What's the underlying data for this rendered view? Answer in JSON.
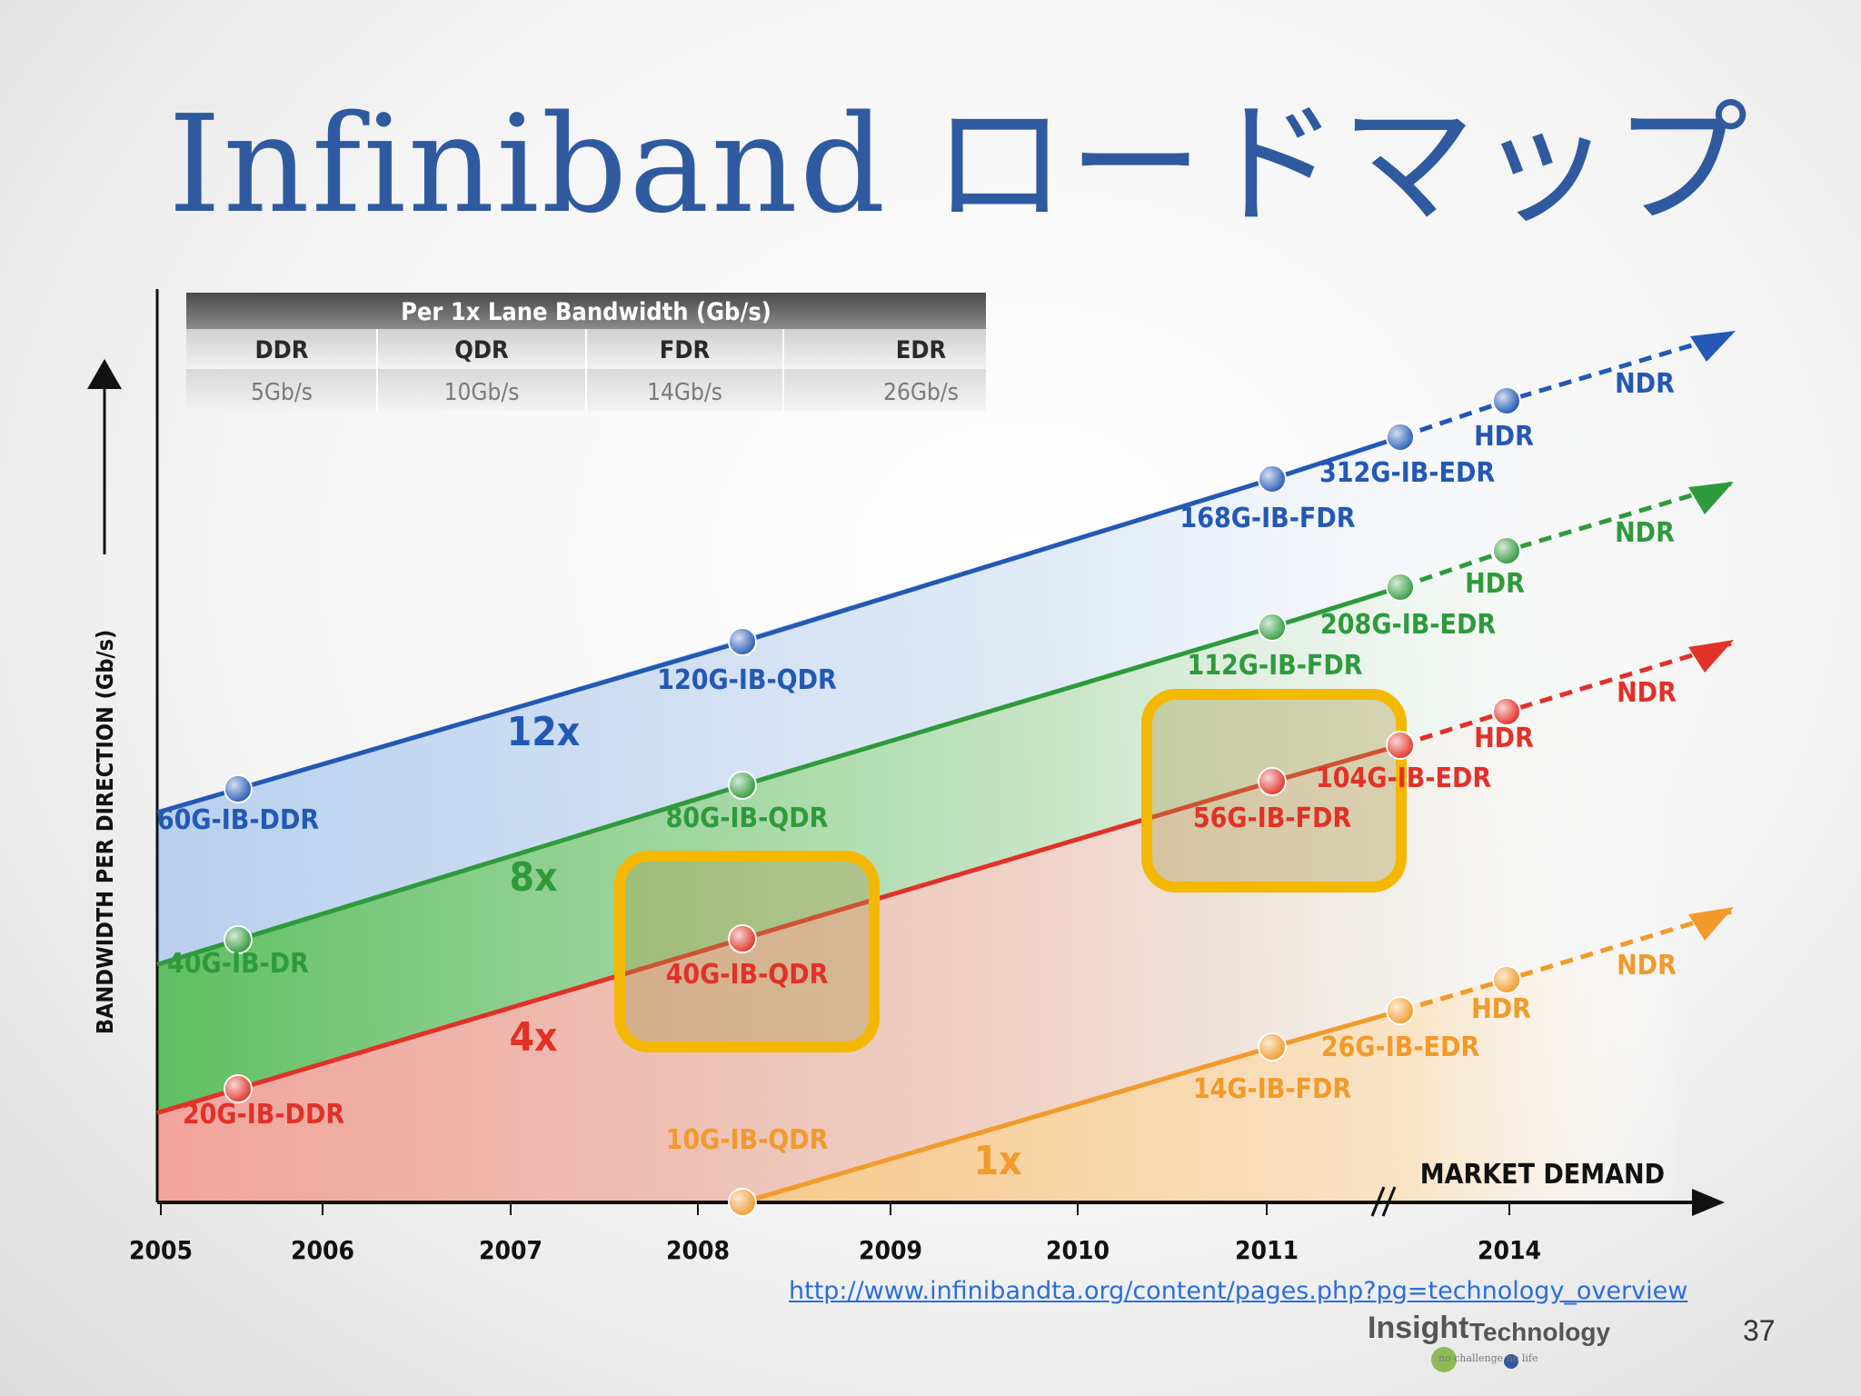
{
  "slide": {
    "title": "Infiniband ロードマップ",
    "source_url": "http://www.infinibandta.org/content/pages.php?pg=technology_overview",
    "page_number": "37",
    "logo": {
      "insight": "Insight",
      "technology": "Technology",
      "tagline": "no challenge no life"
    }
  },
  "colors": {
    "12x": "#2358b5",
    "8x": "#2f9a3c",
    "4x": "#e23128",
    "1x": "#f29a2a",
    "title": "#2f5aa0",
    "highlight": "#f5b800"
  },
  "chart_data": {
    "type": "line",
    "ylabel": "BANDWIDTH PER DIRECTION (Gb/s)",
    "annotation": "MARKET DEMAND",
    "x_ticks": [
      "2005",
      "2006",
      "2007",
      "2008",
      "2009",
      "2010",
      "2011",
      "2014"
    ],
    "lane_table": {
      "header": "Per 1x Lane Bandwidth (Gb/s)",
      "columns": [
        "DDR",
        "QDR",
        "FDR",
        "EDR"
      ],
      "values": [
        "5Gb/s",
        "10Gb/s",
        "14Gb/s",
        "26Gb/s"
      ]
    },
    "series": [
      {
        "name": "12x",
        "color": "#2358b5",
        "points": [
          {
            "label": "60G-IB-DDR",
            "x": 2005.5
          },
          {
            "label": "120G-IB-QDR",
            "x": 2008.2
          },
          {
            "label": "168G-IB-FDR",
            "x": 2011.0
          },
          {
            "label": "312G-IB-EDR",
            "x": 2011.7
          }
        ],
        "future": [
          {
            "label": "HDR"
          },
          {
            "label": "NDR"
          }
        ]
      },
      {
        "name": "8x",
        "color": "#2f9a3c",
        "points": [
          {
            "label": "40G-IB-DR",
            "x": 2005.5
          },
          {
            "label": "80G-IB-QDR",
            "x": 2008.2
          },
          {
            "label": "112G-IB-FDR",
            "x": 2011.0
          },
          {
            "label": "208G-IB-EDR",
            "x": 2011.7
          }
        ],
        "future": [
          {
            "label": "HDR"
          },
          {
            "label": "NDR"
          }
        ]
      },
      {
        "name": "4x",
        "color": "#e23128",
        "points": [
          {
            "label": "20G-IB-DDR",
            "x": 2005.5
          },
          {
            "label": "40G-IB-QDR",
            "x": 2008.2
          },
          {
            "label": "56G-IB-FDR",
            "x": 2011.0
          },
          {
            "label": "104G-IB-EDR",
            "x": 2011.7
          }
        ],
        "future": [
          {
            "label": "HDR"
          },
          {
            "label": "NDR"
          }
        ]
      },
      {
        "name": "1x",
        "color": "#f29a2a",
        "points": [
          {
            "label": "10G-IB-QDR",
            "x": 2008.2
          },
          {
            "label": "14G-IB-FDR",
            "x": 2011.0
          },
          {
            "label": "26G-IB-EDR",
            "x": 2011.7
          }
        ],
        "future": [
          {
            "label": "HDR"
          },
          {
            "label": "NDR"
          }
        ]
      }
    ],
    "highlighted": [
      "40G-IB-QDR",
      "56G-IB-FDR"
    ]
  }
}
